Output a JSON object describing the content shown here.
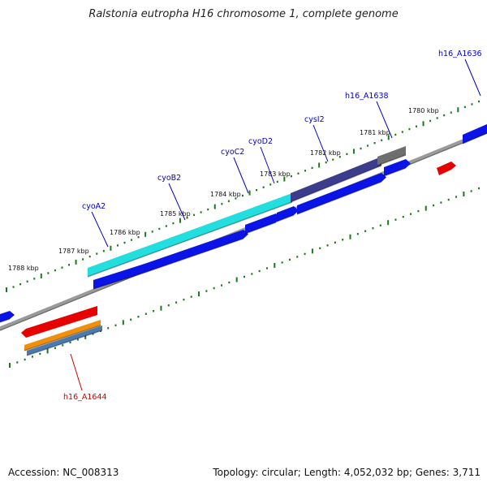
{
  "title": "Ralstonia eutropha H16 chromosome 1, complete genome",
  "footer": {
    "accession": "Accession: NC_008313",
    "stats": "Topology: circular; Length: 4,052,032 bp; Genes: 3,711"
  },
  "scale_labels": [
    "1788 kbp",
    "1787 kbp",
    "1786 kbp",
    "1785 kbp",
    "1784 kbp",
    "1783 kbp",
    "1782 kbp",
    "1781 kbp",
    "1780 kbp"
  ],
  "gene_labels": [
    {
      "text": "cyoA2",
      "color": "#0000cc"
    },
    {
      "text": "cyoB2",
      "color": "#0000cc"
    },
    {
      "text": "cyoC2",
      "color": "#0000cc"
    },
    {
      "text": "cyoD2",
      "color": "#0000cc"
    },
    {
      "text": "cysI2",
      "color": "#0000cc"
    },
    {
      "text": "h16_A1638",
      "color": "#0000cc"
    },
    {
      "text": "h16_A1636",
      "color": "#0000cc"
    },
    {
      "text": "h16_A1644",
      "color": "#cc0000"
    }
  ],
  "colors": {
    "backbone": "#8a8a8a",
    "tick": "#1a7a1a",
    "cds_forward": "#0a14e6",
    "cds_reverse": "#e60000",
    "highlight_cyan": "#22dede",
    "highlight_purple": "#3c3c8c",
    "highlight_gray": "#6e6e6e",
    "orange": "#f0900a",
    "steel": "#4a7ab0"
  }
}
